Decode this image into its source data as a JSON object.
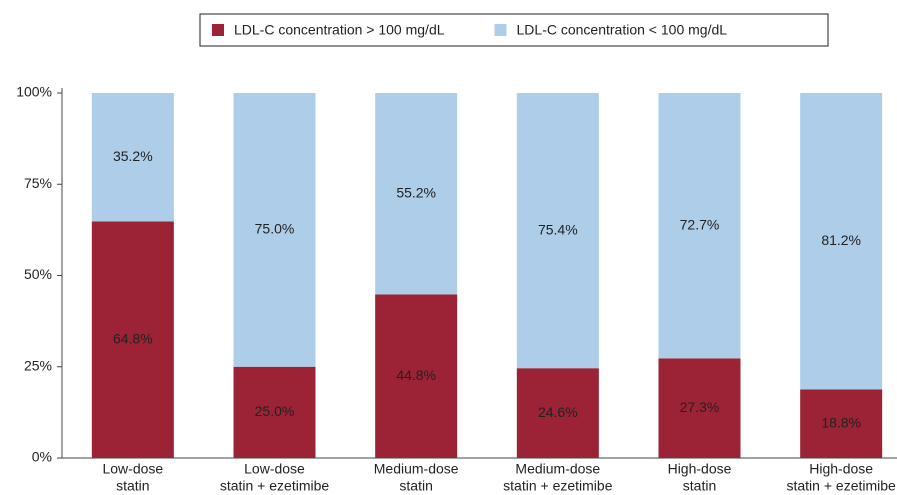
{
  "chart_data": {
    "type": "stacked-bar",
    "categories": [
      [
        "Low-dose",
        "statin"
      ],
      [
        "Low-dose",
        "statin + ezetimibe"
      ],
      [
        "Medium-dose",
        "statin"
      ],
      [
        "Medium-dose",
        "statin + ezetimibe"
      ],
      [
        "High-dose",
        "statin"
      ],
      [
        "High-dose",
        "statin + ezetimibe"
      ]
    ],
    "series": [
      {
        "name": "LDL-C concentration > 100 mg/dL",
        "color": "#9b2335",
        "values": [
          64.8,
          25.0,
          44.8,
          24.6,
          27.3,
          18.8
        ],
        "value_labels": [
          "64.8%",
          "25.0%",
          "44.8%",
          "24.6%",
          "27.3%",
          "18.8%"
        ]
      },
      {
        "name": "LDL-C concentration < 100 mg/dL",
        "color": "#aecde8",
        "values": [
          35.2,
          75.0,
          55.2,
          75.4,
          72.7,
          81.2
        ],
        "value_labels": [
          "35.2%",
          "75.0%",
          "55.2%",
          "75.4%",
          "72.7%",
          "81.2%"
        ]
      }
    ],
    "ylim": [
      0,
      100
    ],
    "yticks": [
      {
        "value": 0,
        "label": "0%"
      },
      {
        "value": 25,
        "label": "25%"
      },
      {
        "value": 50,
        "label": "50%"
      },
      {
        "value": 75,
        "label": "75%"
      },
      {
        "value": 100,
        "label": "100%"
      }
    ],
    "legend": "top",
    "grid": false
  }
}
